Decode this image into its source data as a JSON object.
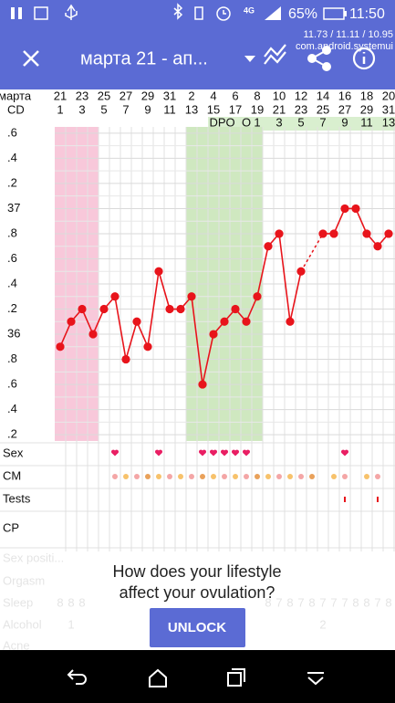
{
  "status_bar": {
    "battery": "65%",
    "time": "11:50",
    "debug_line": "11.73 / 11.11 / 10.95",
    "debug_package": "com.android.systemui"
  },
  "toolbar": {
    "title": "марта 21 - ап..."
  },
  "header": {
    "month_label": "марта",
    "cd_label": "CD",
    "dates": [
      "21",
      "23",
      "25",
      "27",
      "29",
      "31",
      "2",
      "4",
      "6",
      "8",
      "10",
      "12",
      "14",
      "16",
      "18",
      "20"
    ],
    "date_colors": [
      "#111111",
      "#111111",
      "#e8141b",
      "#111111",
      "#111111",
      "#111111",
      "#e8141b",
      "#111111",
      "#111111",
      "#e8141b",
      "#111111",
      "#111111",
      "#111111",
      "#e8141b",
      "#111111",
      "#111111"
    ],
    "cycle_days": [
      "1",
      "3",
      "5",
      "7",
      "9",
      "11",
      "13",
      "15",
      "17",
      "19",
      "21",
      "23",
      "25",
      "27",
      "29",
      "31"
    ],
    "phase_labels": [
      "DPO",
      "O",
      "1",
      "3",
      "5",
      "7",
      "9",
      "11",
      "13"
    ],
    "phase_days": [
      15.8,
      18,
      19,
      21,
      23,
      25,
      27,
      29,
      31
    ]
  },
  "chart_data": {
    "type": "line",
    "x": [
      1,
      2,
      3,
      4,
      5,
      6,
      7,
      8,
      9,
      10,
      11,
      12,
      13,
      14,
      15,
      16,
      17,
      18,
      19,
      20,
      21,
      22,
      23,
      24,
      25,
      26,
      27,
      28,
      29,
      30,
      31
    ],
    "series": [
      {
        "color": "#e8141b",
        "values": [
          35.9,
          36.1,
          36.2,
          36.0,
          36.2,
          36.3,
          35.8,
          36.1,
          35.9,
          36.5,
          36.2,
          36.2,
          36.3,
          35.6,
          36.0,
          36.1,
          36.2,
          36.1,
          36.3,
          36.7,
          36.8,
          36.1,
          36.5,
          null,
          36.8,
          36.8,
          37.0,
          37.0,
          36.8,
          36.7,
          36.8
        ]
      }
    ],
    "xlim": [
      0.5,
      31.5
    ],
    "ylim": [
      35.15,
      37.65
    ],
    "yticks": [
      {
        "value": 35.2,
        "label": ".2"
      },
      {
        "value": 35.4,
        "label": ".4"
      },
      {
        "value": 35.6,
        "label": ".6"
      },
      {
        "value": 35.8,
        "label": ".8"
      },
      36,
      {
        "value": 36.2,
        "label": ".2"
      },
      {
        "value": 36.4,
        "label": ".4"
      },
      {
        "value": 36.6,
        "label": ".6"
      },
      {
        "value": 36.8,
        "label": ".8"
      },
      37,
      {
        "value": 37.2,
        "label": ".2"
      },
      {
        "value": 37.4,
        "label": ".4"
      },
      {
        "value": 37.6,
        "label": ".6"
      }
    ],
    "grid": true,
    "period_band": {
      "days": [
        1,
        4
      ],
      "color": "#f8c8da"
    },
    "fertile_band": {
      "days": [
        13,
        19
      ],
      "color": "#cfe8c0"
    }
  },
  "rows": {
    "sex": {
      "label": "Sex",
      "days": [
        6,
        10,
        14,
        15,
        16,
        17,
        18,
        27
      ],
      "color": "#e91e63"
    },
    "cm": {
      "label": "CM",
      "days": [
        6,
        7,
        8,
        9,
        10,
        11,
        12,
        13,
        14,
        15,
        16,
        17,
        18,
        19,
        20,
        21,
        22,
        23,
        24,
        26,
        27,
        29,
        30
      ]
    },
    "tests": {
      "label": "Tests",
      "days": [
        27,
        30
      ],
      "color": "#e8141b"
    },
    "cp": {
      "label": "CP"
    },
    "sex_position": {
      "label": "Sex positi..."
    },
    "orgasm": {
      "label": "Orgasm"
    },
    "sleep": {
      "label": "Sleep",
      "days": [
        1,
        2,
        3,
        20,
        21,
        22,
        23,
        24,
        25,
        26,
        27,
        28,
        29,
        30,
        31
      ],
      "values": [
        8,
        8,
        8,
        8,
        7,
        8,
        7,
        8,
        7,
        7,
        7,
        8,
        8,
        7,
        8
      ]
    },
    "alcohol": {
      "label": "Alcohol",
      "days": [
        2,
        25
      ],
      "values": [
        1,
        2
      ]
    },
    "acne": {
      "label": "Acne"
    }
  },
  "promo": {
    "line1": "How does your lifestyle",
    "line2": "affect your ovulation?",
    "button": "UNLOCK"
  }
}
